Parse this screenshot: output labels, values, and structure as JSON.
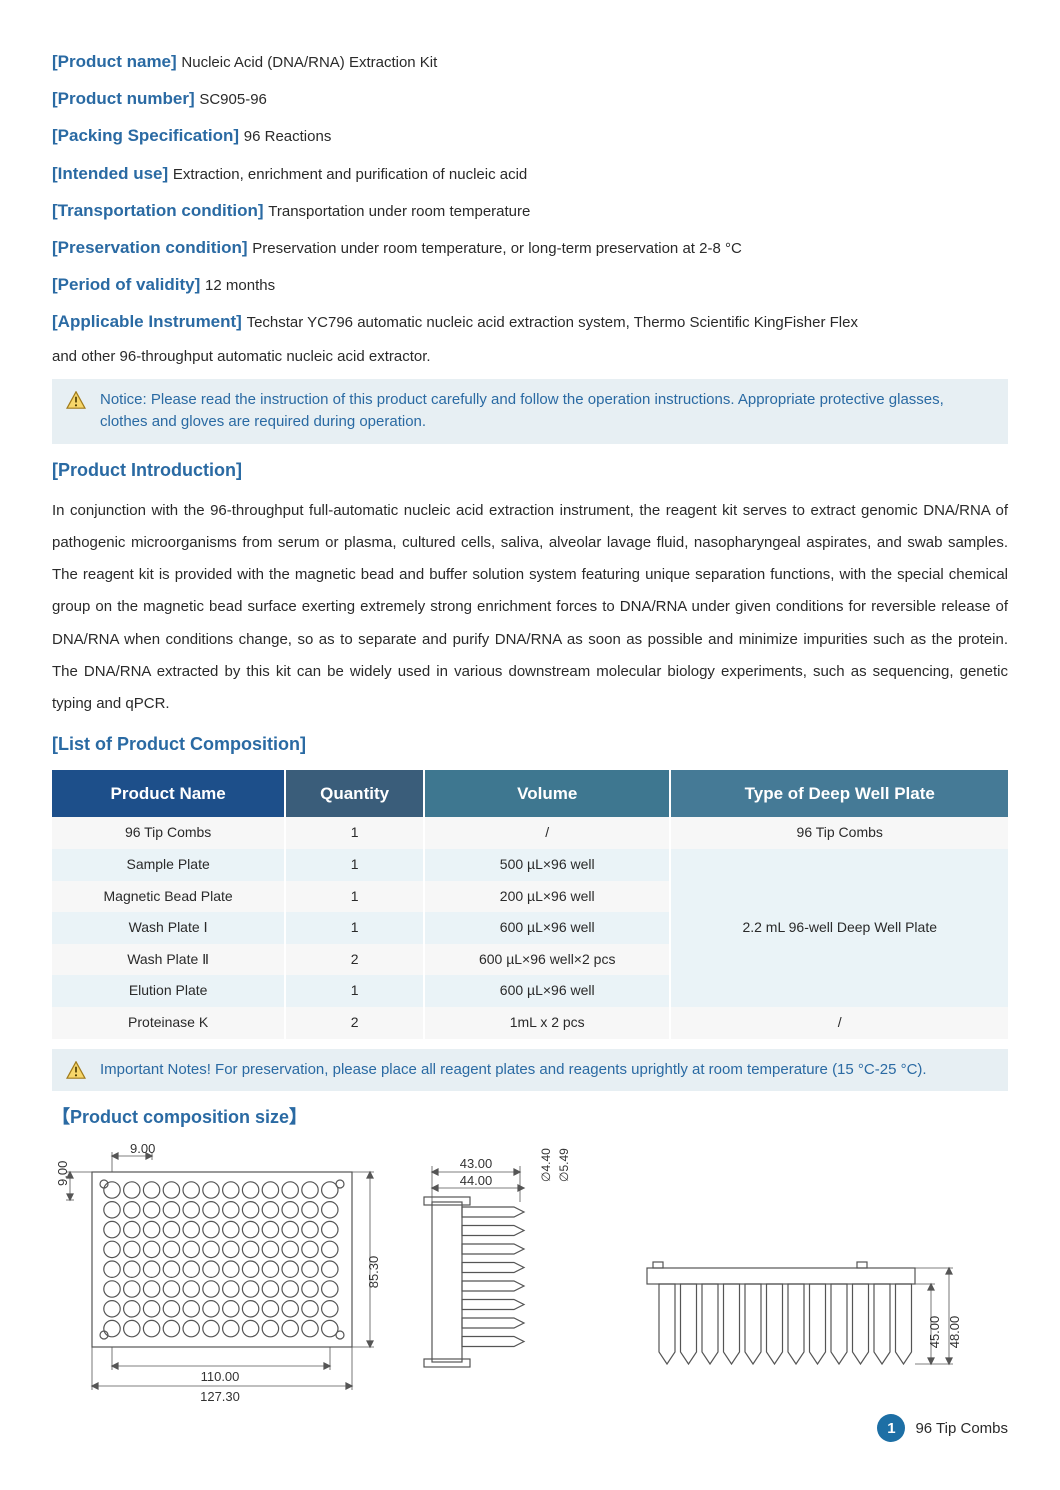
{
  "colors": {
    "accent": "#2a6aa3",
    "notice_bg": "#e7eff3",
    "th_bg_1": "#1d4f8a",
    "th_bg_2": "#3a5d7a",
    "th_bg_3": "#3e7790",
    "th_bg_4": "#457a96",
    "row_odd": "#f7f7f7",
    "row_even": "#eaf3f7",
    "diagram_stroke": "#555555",
    "page_circle": "#1d6fa5",
    "warn_fill": "#f6d66a",
    "warn_stroke": "#a07a1a"
  },
  "meta": [
    {
      "label": "[Product name]",
      "value": "Nucleic Acid (DNA/RNA) Extraction Kit"
    },
    {
      "label": "[Product number]",
      "value": "SC905-96"
    },
    {
      "label": "[Packing Specification]",
      "value": "96 Reactions"
    },
    {
      "label": "[Intended use]",
      "value": "Extraction, enrichment and purification of nucleic acid"
    },
    {
      "label": "[Transportation condition]",
      "value": "Transportation under room temperature"
    },
    {
      "label": "[Preservation condition]",
      "value": "Preservation under room temperature, or long-term preservation at 2-8 °C"
    },
    {
      "label": "[Period of validity]",
      "value": "12 months"
    },
    {
      "label": "[Applicable Instrument]",
      "value": "Techstar YC796 automatic nucleic acid extraction system, Thermo Scientific KingFisher Flex"
    }
  ],
  "meta_continuation": "and other 96-throughput automatic nucleic acid extractor.",
  "notice1": "Notice: Please read the instruction of this product carefully and follow the operation instructions. Appropriate protective glasses, clothes and gloves are required during operation.",
  "intro_heading": "[Product Introduction]",
  "intro_text": "In conjunction with the 96-throughput full-automatic nucleic acid extraction instrument, the reagent kit serves to extract genomic DNA/RNA of pathogenic microorganisms from serum or plasma, cultured cells, saliva, alveolar lavage fluid, nasopharyngeal aspirates, and swab samples. The reagent kit is provided with the magnetic bead and buffer solution system featuring unique separation functions, with the special chemical group on the magnetic bead surface exerting extremely strong enrichment forces to DNA/RNA under given conditions for reversible release of DNA/RNA when conditions change, so as to separate and purify DNA/RNA as soon as possible and minimize impurities such as the protein. The DNA/RNA extracted by this kit can be widely used in various downstream molecular biology experiments, such as sequencing, genetic typing and qPCR.",
  "composition_heading": "[List of Product Composition]",
  "composition_columns": [
    "Product Name",
    "Quantity",
    "Volume",
    "Type of Deep Well Plate"
  ],
  "composition_rows": [
    {
      "cells": [
        "96 Tip Combs",
        "1",
        "/",
        "96 Tip Combs"
      ],
      "class": "row-odd",
      "span_start": false
    },
    {
      "cells": [
        "Sample Plate",
        "1",
        "500 µL×96 well"
      ],
      "class": "row-even",
      "span_start": true,
      "span_text": "2.2 mL 96-well Deep Well Plate",
      "span_rows": 5
    },
    {
      "cells": [
        "Magnetic Bead Plate",
        "1",
        "200 µL×96 well"
      ],
      "class": "row-odd"
    },
    {
      "cells": [
        "Wash Plate Ⅰ",
        "1",
        "600 µL×96 well"
      ],
      "class": "row-even"
    },
    {
      "cells": [
        "Wash Plate Ⅱ",
        "2",
        "600 µL×96 well×2 pcs"
      ],
      "class": "row-odd"
    },
    {
      "cells": [
        "Elution Plate",
        "1",
        "600 µL×96 well"
      ],
      "class": "row-even"
    },
    {
      "cells": [
        "Proteinase K",
        "2",
        "1mL x 2 pcs",
        "/"
      ],
      "class": "row-odd"
    }
  ],
  "notice2": "Important Notes! For preservation, please place all reagent plates and reagents uprightly at room temperature (15 °C-25 °C).",
  "size_heading": "【Product composition size】",
  "diagram_labels": {
    "top_9a": "9.00",
    "left_9": "9.00",
    "height_8530": "85.30",
    "width_110": "110.00",
    "width_12730": "127.30",
    "mid_43": "43.00",
    "mid_44": "44.00",
    "phi_440": "∅4.40",
    "phi_549": "∅5.49",
    "h_45": "45.00",
    "h_48": "48.00"
  },
  "page_number": "1",
  "page_caption": "96 Tip Combs"
}
